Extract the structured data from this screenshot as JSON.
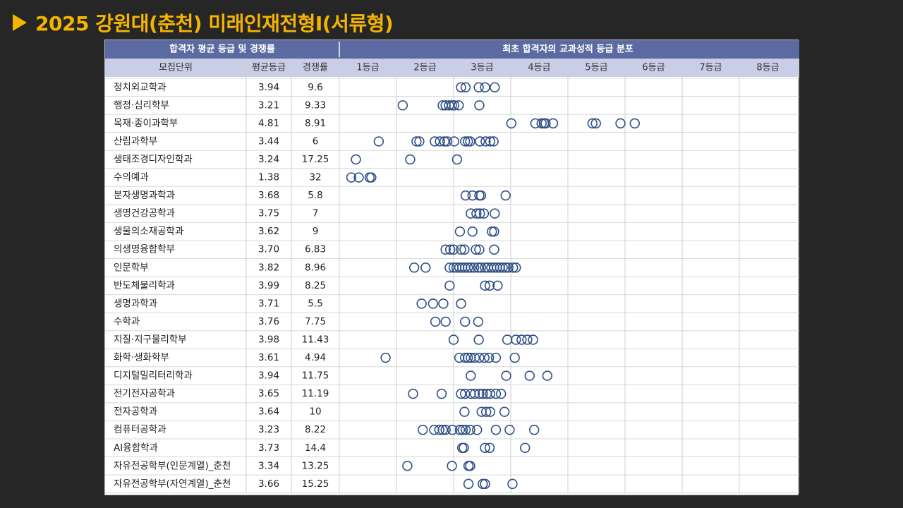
{
  "title": "2025 강원대(춘천) 미래인재전형I(서류형)",
  "header": {
    "left_group": "합격자 평균 등급 및 경쟁률",
    "right_group": "최초 합격자의 교과성적 등급 분포",
    "columns": [
      "모집단위",
      "평균등급",
      "경쟁률"
    ]
  },
  "colors": {
    "title": "#f5b400",
    "header_dark": "#5b6aa0",
    "header_light": "#c9cde6",
    "marker": "#2f4f86"
  },
  "chart_data": {
    "type": "scatter",
    "marker": "circle",
    "x_categories": [
      "1등급",
      "2등급",
      "3등급",
      "4등급",
      "5등급",
      "6등급",
      "7등급",
      "8등급"
    ],
    "xlim": [
      1,
      9
    ],
    "rows": [
      {
        "name": "정치외교학과",
        "avg": "3.94",
        "ratio": "9.6",
        "grades": [
          3.13,
          3.21,
          3.44,
          3.55,
          3.72
        ]
      },
      {
        "name": "행정·심리학부",
        "avg": "3.21",
        "ratio": "9.33",
        "grades": [
          2.11,
          2.81,
          2.86,
          2.92,
          2.97,
          3.01,
          3.09,
          3.45
        ]
      },
      {
        "name": "목재·종이과학부",
        "avg": "4.81",
        "ratio": "8.91",
        "grades": [
          4.01,
          4.43,
          4.54,
          4.61,
          4.58,
          4.74,
          5.43,
          5.49,
          5.92,
          6.17
        ]
      },
      {
        "name": "산림과학부",
        "avg": "3.44",
        "ratio": "6",
        "grades": [
          1.69,
          2.35,
          2.4,
          2.67,
          2.76,
          2.84,
          2.89,
          3.01,
          3.2,
          3.25,
          3.29,
          3.46,
          3.56,
          3.64,
          3.7
        ]
      },
      {
        "name": "생태조경디자인학과",
        "avg": "3.24",
        "ratio": "17.25",
        "grades": [
          1.29,
          2.24,
          3.06
        ]
      },
      {
        "name": "수의예과",
        "avg": "1.38",
        "ratio": "32",
        "grades": [
          1.21,
          1.34,
          1.53,
          1.56
        ]
      },
      {
        "name": "분자생명과학과",
        "avg": "3.68",
        "ratio": "5.8",
        "grades": [
          3.21,
          3.33,
          3.45,
          3.48,
          3.91
        ]
      },
      {
        "name": "생명건강공학과",
        "avg": "3.75",
        "ratio": "7",
        "grades": [
          3.3,
          3.4,
          3.46,
          3.53,
          3.72
        ]
      },
      {
        "name": "생물의소재공학과",
        "avg": "3.62",
        "ratio": "9",
        "grades": [
          3.11,
          3.33,
          3.67,
          3.71
        ]
      },
      {
        "name": "의생명융합학부",
        "avg": "3.70",
        "ratio": "6.83",
        "grades": [
          2.86,
          2.94,
          3.0,
          3.13,
          3.19,
          3.39,
          3.45,
          3.71
        ]
      },
      {
        "name": "인문학부",
        "avg": "3.82",
        "ratio": "8.96",
        "grades": [
          2.31,
          2.51,
          2.93,
          3.0,
          3.05,
          3.1,
          3.15,
          3.2,
          3.25,
          3.3,
          3.36,
          3.43,
          3.48,
          3.55,
          3.6,
          3.66,
          3.71,
          3.76,
          3.81,
          3.86,
          3.91,
          3.96,
          4.04,
          4.09
        ]
      },
      {
        "name": "반도체물리학과",
        "avg": "3.99",
        "ratio": "8.25",
        "grades": [
          2.93,
          3.55,
          3.63,
          3.77
        ]
      },
      {
        "name": "생명과학과",
        "avg": "3.71",
        "ratio": "5.5",
        "grades": [
          2.44,
          2.64,
          2.82,
          3.13
        ]
      },
      {
        "name": "수학과",
        "avg": "3.76",
        "ratio": "7.75",
        "grades": [
          2.68,
          2.86,
          3.2,
          3.43
        ]
      },
      {
        "name": "지질·지구물리학부",
        "avg": "3.98",
        "ratio": "11.43",
        "grades": [
          3.0,
          3.44,
          3.94,
          4.09,
          4.19,
          4.29,
          4.39
        ]
      },
      {
        "name": "화학·생화학부",
        "avg": "3.61",
        "ratio": "4.94",
        "grades": [
          1.81,
          3.1,
          3.2,
          3.25,
          3.3,
          3.37,
          3.45,
          3.54,
          3.62,
          3.74,
          4.07
        ]
      },
      {
        "name": "디지털밀리터리학과",
        "avg": "3.94",
        "ratio": "11.75",
        "grades": [
          3.3,
          3.92,
          4.33,
          4.64
        ]
      },
      {
        "name": "전기전자공학과",
        "avg": "3.65",
        "ratio": "11.19",
        "grades": [
          2.29,
          2.79,
          3.13,
          3.2,
          3.3,
          3.37,
          3.45,
          3.51,
          3.58,
          3.64,
          3.74,
          3.83
        ]
      },
      {
        "name": "전자공학과",
        "avg": "3.64",
        "ratio": "10",
        "grades": [
          3.19,
          3.49,
          3.57,
          3.64,
          3.89
        ]
      },
      {
        "name": "컴퓨터공학과",
        "avg": "3.23",
        "ratio": "8.22",
        "grades": [
          2.46,
          2.66,
          2.75,
          2.81,
          2.86,
          2.98,
          3.11,
          3.16,
          3.21,
          3.29,
          3.41,
          3.74,
          3.98,
          4.41
        ]
      },
      {
        "name": "AI융합학과",
        "avg": "3.73",
        "ratio": "14.4",
        "grades": [
          3.15,
          3.18,
          3.55,
          3.63,
          4.25
        ]
      },
      {
        "name": "자유전공학부(인문계열)_춘천",
        "avg": "3.34",
        "ratio": "13.25",
        "grades": [
          2.19,
          2.97,
          3.26,
          3.29
        ]
      },
      {
        "name": "자유전공학부(자연계열)_춘천",
        "avg": "3.66",
        "ratio": "15.25",
        "grades": [
          3.26,
          3.51,
          3.55,
          4.03
        ]
      }
    ]
  }
}
